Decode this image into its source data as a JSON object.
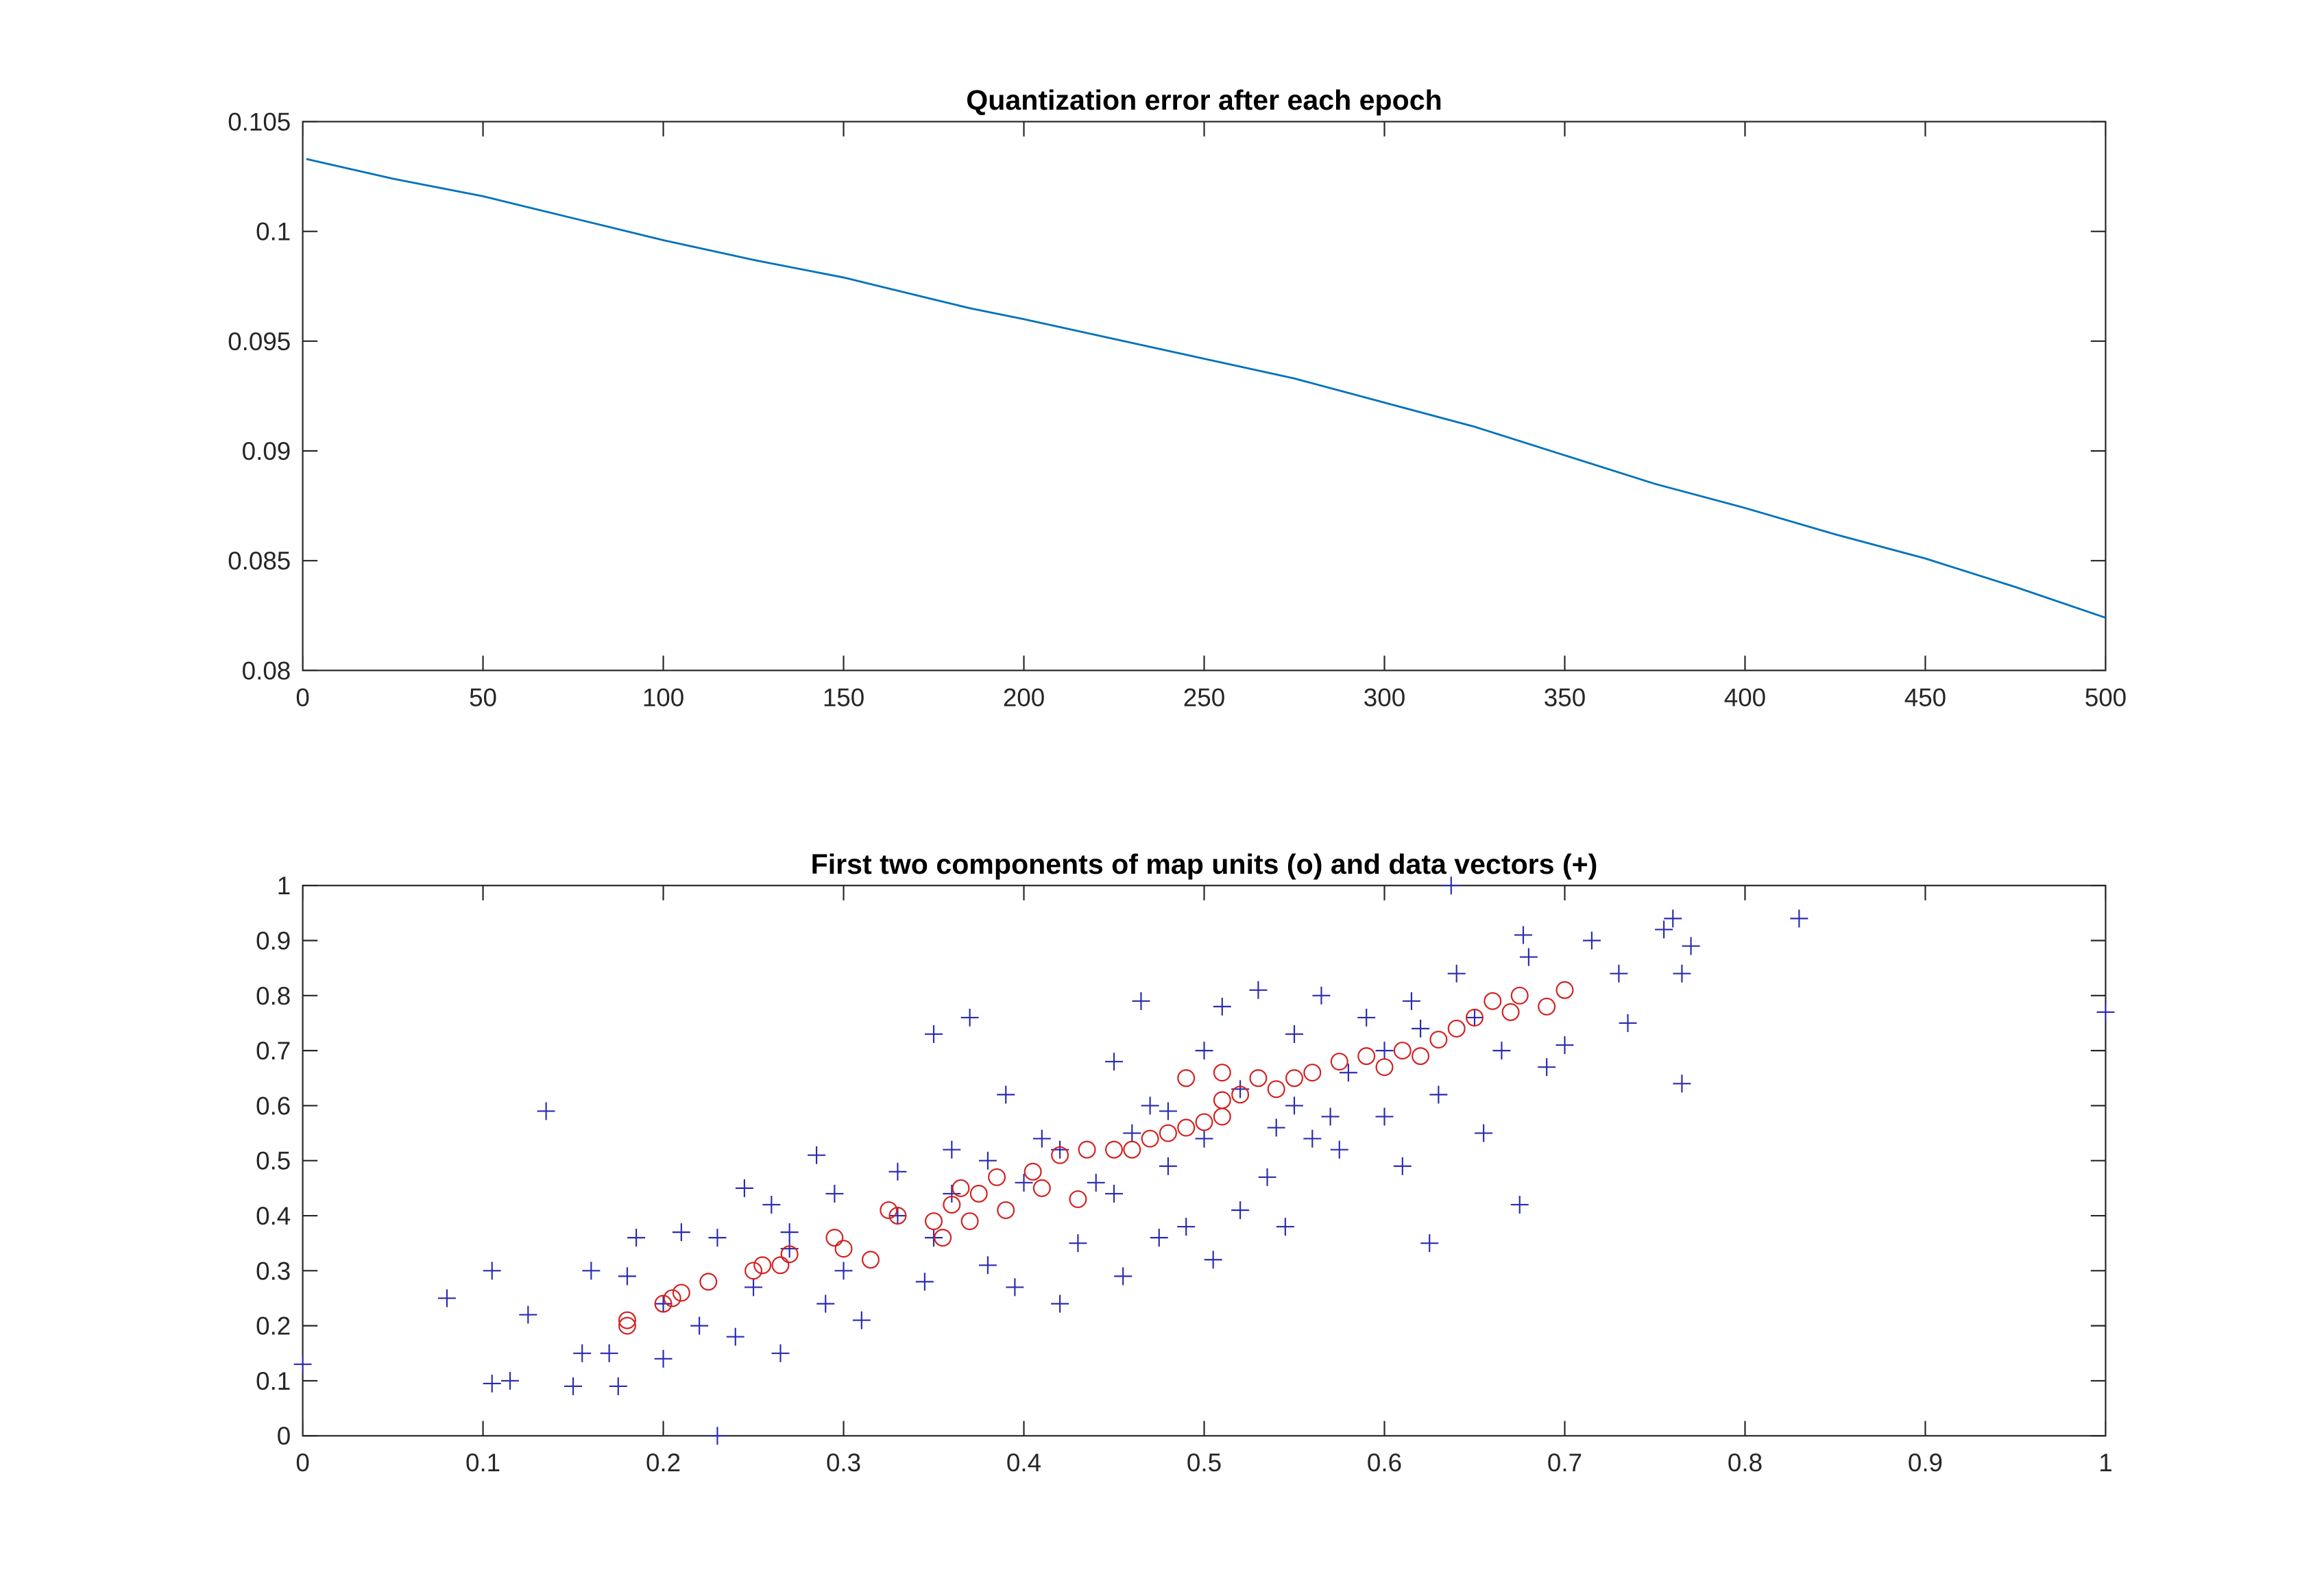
{
  "chart_data": [
    {
      "type": "line",
      "title": "Quantization error after each epoch",
      "x": [
        1,
        25,
        50,
        75,
        100,
        125,
        150,
        175,
        185,
        200,
        225,
        250,
        275,
        300,
        325,
        350,
        375,
        400,
        425,
        450,
        475,
        500
      ],
      "series": [
        {
          "color": "#0072bd",
          "values": [
            0.1033,
            0.1024,
            0.1016,
            0.1006,
            0.0996,
            0.0987,
            0.0979,
            0.0969,
            0.0965,
            0.096,
            0.0951,
            0.0942,
            0.0933,
            0.0922,
            0.0911,
            0.0898,
            0.0885,
            0.0874,
            0.0862,
            0.0851,
            0.0838,
            0.0824
          ]
        }
      ],
      "xlim": [
        0,
        500
      ],
      "xticks": [
        0,
        50,
        100,
        150,
        200,
        250,
        300,
        350,
        400,
        450,
        500
      ],
      "ylim": [
        0.08,
        0.105
      ],
      "yticks": [
        0.08,
        0.085,
        0.09,
        0.095,
        0.1,
        0.105
      ]
    },
    {
      "type": "scatter",
      "title": "First two components of map units (o) and data vectors (+)",
      "series": [
        {
          "marker": "plus",
          "color": "#2b2bb0",
          "x": [
            0,
            0.08,
            0.105,
            0.105,
            0.115,
            0.125,
            0.135,
            0.15,
            0.155,
            0.16,
            0.17,
            0.175,
            0.18,
            0.185,
            0.2,
            0.2,
            0.21,
            0.22,
            0.23,
            0.23,
            0.24,
            0.245,
            0.26,
            0.265,
            0.27,
            0.285,
            0.29,
            0.295,
            0.31,
            0.33,
            0.345,
            0.35,
            0.36,
            0.37,
            0.38,
            0.39,
            0.395,
            0.41,
            0.42,
            0.43,
            0.44,
            0.45,
            0.455,
            0.46,
            0.465,
            0.475,
            0.48,
            0.49,
            0.5,
            0.505,
            0.51,
            0.52,
            0.53,
            0.535,
            0.545,
            0.55,
            0.56,
            0.565,
            0.575,
            0.59,
            0.6,
            0.61,
            0.615,
            0.625,
            0.63,
            0.637,
            0.64,
            0.65,
            0.655,
            0.665,
            0.675,
            0.677,
            0.68,
            0.69,
            0.7,
            0.715,
            0.73,
            0.735,
            0.755,
            0.76,
            0.765,
            0.765,
            0.77,
            0.83,
            1,
            0.3,
            0.33,
            0.36,
            0.4,
            0.42,
            0.47,
            0.5,
            0.52,
            0.55,
            0.58,
            0.6,
            0.62,
            0.45,
            0.38,
            0.48,
            0.54,
            0.57,
            0.35,
            0.25,
            0.27
          ],
          "y": [
            0.13,
            0.25,
            0.3,
            0.095,
            0.1,
            0.22,
            0.59,
            0.09,
            0.15,
            0.3,
            0.15,
            0.09,
            0.29,
            0.36,
            0.14,
            0.24,
            0.37,
            0.2,
            0,
            0.36,
            0.18,
            0.45,
            0.42,
            0.15,
            0.34,
            0.51,
            0.24,
            0.44,
            0.21,
            0.48,
            0.28,
            0.73,
            0.52,
            0.76,
            0.31,
            0.62,
            0.27,
            0.54,
            0.24,
            0.35,
            0.46,
            0.68,
            0.29,
            0.55,
            0.79,
            0.36,
            0.59,
            0.38,
            0.7,
            0.32,
            0.78,
            0.41,
            0.81,
            0.47,
            0.38,
            0.73,
            0.54,
            0.8,
            0.52,
            0.76,
            0.58,
            0.49,
            0.79,
            0.35,
            0.62,
            1,
            0.84,
            0.76,
            0.55,
            0.7,
            0.42,
            0.91,
            0.87,
            0.67,
            0.71,
            0.9,
            0.84,
            0.75,
            0.92,
            0.94,
            0.84,
            0.64,
            0.89,
            0.94,
            0.77,
            0.3,
            0.4,
            0.44,
            0.46,
            0.52,
            0.6,
            0.54,
            0.63,
            0.6,
            0.66,
            0.7,
            0.74,
            0.44,
            0.5,
            0.49,
            0.56,
            0.58,
            0.36,
            0.27,
            0.37
          ]
        },
        {
          "marker": "circle",
          "color": "#d42020",
          "x": [
            0.18,
            0.18,
            0.2,
            0.205,
            0.21,
            0.225,
            0.25,
            0.255,
            0.265,
            0.27,
            0.295,
            0.3,
            0.315,
            0.325,
            0.33,
            0.35,
            0.355,
            0.36,
            0.365,
            0.37,
            0.375,
            0.385,
            0.39,
            0.405,
            0.41,
            0.42,
            0.43,
            0.435,
            0.45,
            0.46,
            0.47,
            0.48,
            0.49,
            0.5,
            0.51,
            0.51,
            0.52,
            0.53,
            0.54,
            0.55,
            0.56,
            0.575,
            0.59,
            0.6,
            0.61,
            0.62,
            0.63,
            0.64,
            0.65,
            0.66,
            0.67,
            0.675,
            0.69,
            0.7,
            0.49,
            0.51
          ],
          "y": [
            0.21,
            0.2,
            0.24,
            0.25,
            0.26,
            0.28,
            0.3,
            0.31,
            0.31,
            0.33,
            0.36,
            0.34,
            0.32,
            0.41,
            0.4,
            0.39,
            0.36,
            0.42,
            0.45,
            0.39,
            0.44,
            0.47,
            0.41,
            0.48,
            0.45,
            0.51,
            0.43,
            0.52,
            0.52,
            0.52,
            0.54,
            0.55,
            0.56,
            0.57,
            0.58,
            0.61,
            0.62,
            0.65,
            0.63,
            0.65,
            0.66,
            0.68,
            0.69,
            0.67,
            0.7,
            0.69,
            0.72,
            0.74,
            0.76,
            0.79,
            0.77,
            0.8,
            0.78,
            0.81,
            0.65,
            0.66
          ]
        }
      ],
      "xlim": [
        0,
        1
      ],
      "xticks": [
        0,
        0.1,
        0.2,
        0.3,
        0.4,
        0.5,
        0.6,
        0.7,
        0.8,
        0.9,
        1
      ],
      "ylim": [
        0,
        1
      ],
      "yticks": [
        0,
        0.1,
        0.2,
        0.3,
        0.4,
        0.5,
        0.6,
        0.7,
        0.8,
        0.9,
        1
      ]
    }
  ]
}
